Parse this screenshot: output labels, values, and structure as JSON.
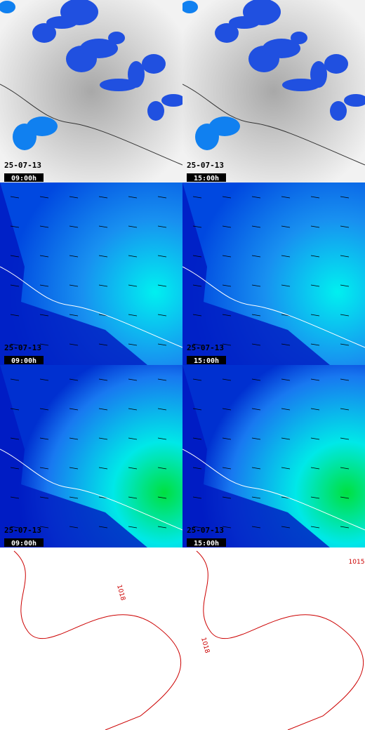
{
  "panels": [
    {
      "date": "25-07-13",
      "time": "09:00h"
    },
    {
      "date": "25-07-13",
      "time": "15:00h"
    },
    {
      "date": "25-07-13",
      "time": "09:00h"
    },
    {
      "date": "25-07-13",
      "time": "15:00h"
    },
    {
      "date": "25-07-13",
      "time": "09:00h"
    },
    {
      "date": "25-07-13",
      "time": "15:00h"
    }
  ],
  "isobar_labels": [
    "1018",
    "1018",
    "1015"
  ]
}
